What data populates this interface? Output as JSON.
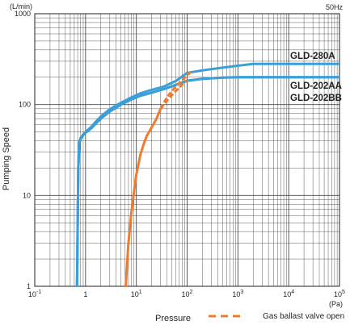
{
  "chart_data": {
    "type": "line",
    "x_scale": "log",
    "y_scale": "log",
    "xlim": [
      0.1,
      100000
    ],
    "ylim": [
      1,
      1000
    ],
    "xlabel": "Pressure",
    "ylabel": "Pumping Speed",
    "x_unit": "(Pa)",
    "y_unit": "(L/min)",
    "frequency_note": "50Hz",
    "grid": true,
    "x_ticks": [
      {
        "base": "10",
        "exp": "-1"
      },
      {
        "base": "1",
        "exp": ""
      },
      {
        "base": "10",
        "exp": "1"
      },
      {
        "base": "10",
        "exp": "2"
      },
      {
        "base": "10",
        "exp": "3"
      },
      {
        "base": "10",
        "exp": "4"
      },
      {
        "base": "10",
        "exp": "5"
      }
    ],
    "y_ticks": [
      "1",
      "10",
      "100",
      "1000"
    ],
    "series": [
      {
        "name": "GLD-280A",
        "color": "#3a9fd6",
        "dash": false,
        "x": [
          0.68,
          0.7,
          0.72,
          0.75,
          0.8,
          0.9,
          1.0,
          1.3,
          1.6,
          2.0,
          3.0,
          5.0,
          8.0,
          12.0,
          20.0,
          35.0,
          60.0,
          100.0,
          200.0,
          500.0,
          1000.0,
          2000.0,
          100000.0
        ],
        "y": [
          1,
          5,
          20,
          38,
          43,
          47,
          50,
          57,
          65,
          74,
          89,
          105,
          120,
          133,
          145,
          158,
          182,
          223,
          238,
          255,
          268,
          280,
          280
        ]
      },
      {
        "name": "GLD-202AA",
        "color": "#3a9fd6",
        "dash": false,
        "x": [
          0.68,
          0.7,
          0.72,
          0.75,
          0.8,
          0.9,
          1.0,
          1.3,
          1.6,
          2.0,
          3.0,
          5.0,
          8.0,
          12.0,
          20.0,
          35.0,
          60.0,
          100.0,
          200.0,
          500.0,
          1000.0,
          2000.0,
          100000.0
        ],
        "y": [
          1,
          5,
          20,
          37,
          42,
          46,
          49,
          55,
          62,
          70,
          84,
          100,
          114,
          125,
          135,
          148,
          165,
          183,
          192,
          198,
          200,
          200,
          200
        ]
      },
      {
        "name": "GLD-202BB",
        "color": "#3a9fd6",
        "dash": false,
        "x": [
          0.68,
          0.7,
          0.72,
          0.75,
          0.8,
          0.9,
          1.0,
          1.3,
          1.6,
          2.0,
          3.0,
          5.0,
          8.0,
          12.0,
          20.0,
          35.0,
          60.0,
          100.0,
          200.0,
          500.0,
          1000.0,
          2000.0,
          100000.0
        ],
        "y": [
          1,
          5,
          20,
          37,
          42,
          46,
          49,
          55,
          62,
          70,
          84,
          100,
          114,
          125,
          135,
          148,
          165,
          183,
          192,
          198,
          200,
          200,
          200
        ]
      },
      {
        "name": "Gas ballast valve open",
        "color": "#ee7b30",
        "dash": false,
        "x": [
          6.2,
          6.5,
          7.0,
          8.0,
          9.0,
          10.0,
          11.0,
          12.0,
          14.0,
          16.0,
          20.0,
          25.0,
          30.0
        ],
        "y": [
          1,
          1.6,
          3,
          6.5,
          11,
          17,
          22,
          28,
          37,
          45,
          56,
          70,
          90
        ]
      },
      {
        "name": "Gas ballast valve open (GLD-280A)",
        "color": "#ee7b30",
        "dash": true,
        "x": [
          30.0,
          40.0,
          55.0,
          75.0,
          100.0,
          120.0
        ],
        "y": [
          90,
          120,
          150,
          180,
          210,
          230
        ]
      },
      {
        "name": "Gas ballast valve open (GLD-202AA/BB)",
        "color": "#ee7b30",
        "dash": true,
        "x": [
          30.0,
          40.0,
          55.0,
          75.0,
          100.0
        ],
        "y": [
          90,
          110,
          135,
          160,
          185
        ]
      }
    ],
    "labels": [
      {
        "text": "GLD-280A"
      },
      {
        "text": "GLD-202AA"
      },
      {
        "text": "GLD-202BB"
      }
    ],
    "legend": {
      "text": "Gas ballast valve open",
      "color": "#ee7b30",
      "style": "dashed"
    }
  }
}
